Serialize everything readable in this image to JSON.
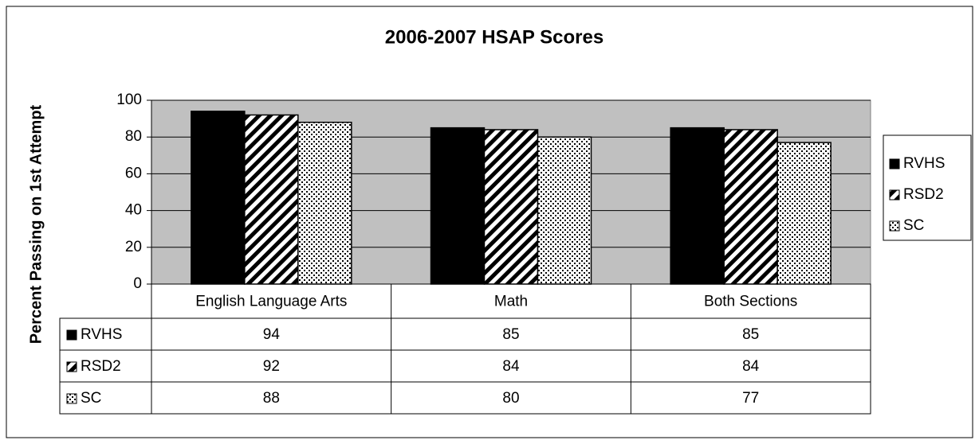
{
  "chart_data": {
    "type": "bar",
    "title": "2006-2007 HSAP Scores",
    "y_label": "Percent Passing on 1st Attempt",
    "categories": [
      "English Language Arts",
      "Math",
      "Both Sections"
    ],
    "series": [
      {
        "name": "RVHS",
        "color": "#000000",
        "pattern": "solid",
        "values": [
          94,
          85,
          85
        ]
      },
      {
        "name": "RSD2",
        "color": "#000000",
        "pattern": "diagonal",
        "values": [
          92,
          84,
          84
        ]
      },
      {
        "name": "SC",
        "color": "#000000",
        "pattern": "dots",
        "values": [
          88,
          80,
          77
        ]
      }
    ],
    "ylim": [
      0,
      100
    ],
    "yticks": [
      0,
      20,
      40,
      60,
      80,
      100
    ],
    "grid": true,
    "legend": "right",
    "data_table": true
  }
}
